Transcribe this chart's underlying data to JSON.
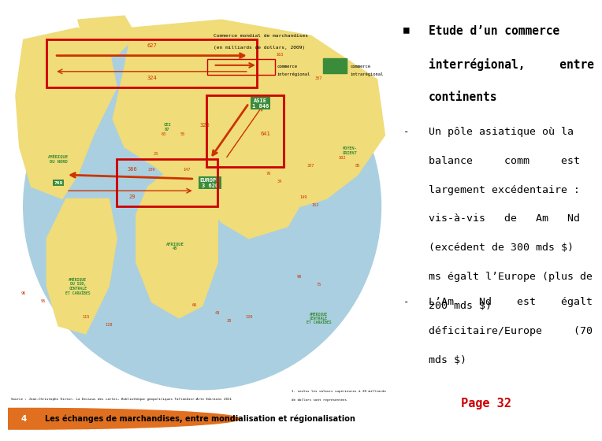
{
  "background_color": "#ffffff",
  "title_bullet": "■",
  "title_lines": [
    "Etude d’un commerce",
    "interrégional,     entre",
    "continents"
  ],
  "title_fontsize": 10.5,
  "title_color": "#000000",
  "item1_dash": "-",
  "item1_lines": [
    "Un pôle asiatique où la",
    "balance     comm     est",
    "largement excédentaire :",
    "vis-à-vis   de   Am   Nd",
    "(excédent de 300 mds $)",
    "ms égalt l’Europe (plus de",
    "200 mds $)"
  ],
  "item1_fontsize": 9.5,
  "item2_dash": "-",
  "item2_lines": [
    "L’Am    Nd    est    égalt",
    "déficitaire/Europe     (70",
    "mds $)"
  ],
  "item2_fontsize": 9.5,
  "text_color": "#000000",
  "page_label": "Page 32",
  "page_label_color": "#cc0000",
  "page_label_fontsize": 11,
  "caption_text": "Les échanges de marchandises, entre mondialisation et régionalisation",
  "caption_fontsize": 7,
  "map_bg": "#c5dce8",
  "globe_color": "#aacfe0",
  "land_color": "#f0dc78",
  "arrow_color": "#cc3300",
  "green_color": "#3a8c3a",
  "orange_color": "#e07020",
  "legend_box_color": "#cc3300",
  "font_family": "monospace"
}
